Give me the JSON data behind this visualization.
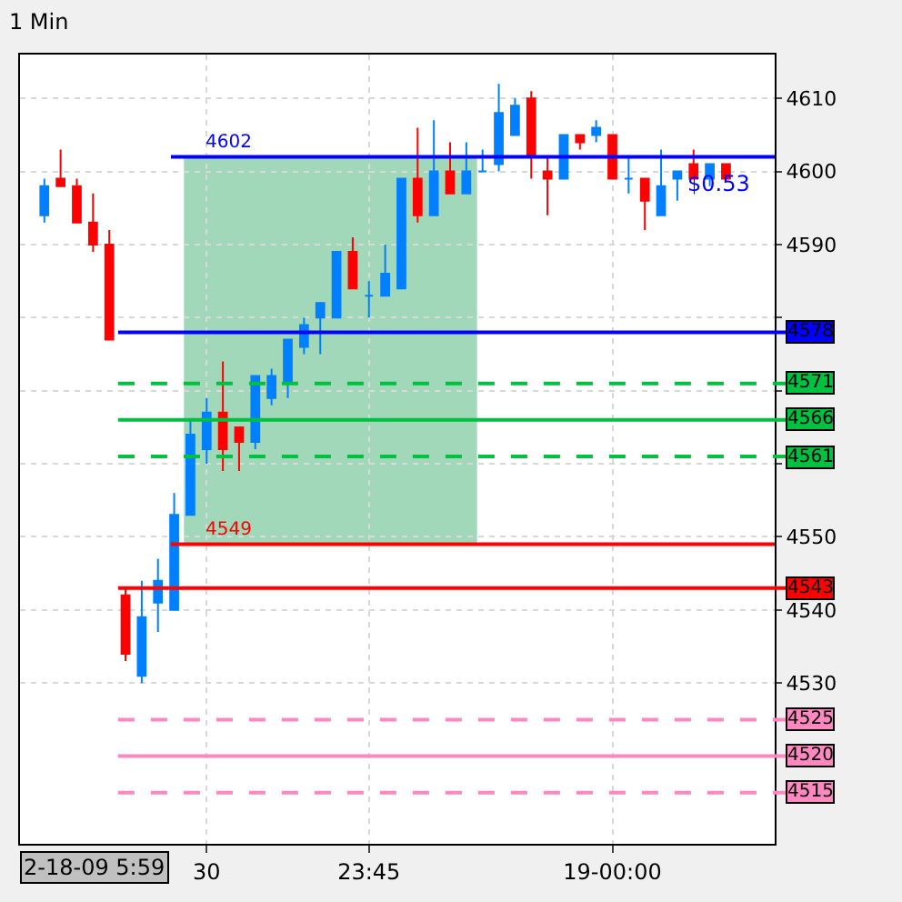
{
  "chart_data": {
    "type": "candlestick",
    "title": "1 Min",
    "categories": [
      null,
      null,
      null,
      null,
      null,
      null,
      null,
      null,
      null,
      null,
      "30",
      null,
      null,
      null,
      null,
      null,
      null,
      null,
      null,
      null,
      "23:45",
      null,
      null,
      null,
      null,
      null,
      null,
      null,
      null,
      null,
      null,
      null,
      null,
      null,
      null,
      "19-00:00",
      null,
      null,
      null,
      null,
      null,
      null,
      null
    ],
    "ohlc": [
      [
        4594,
        4599,
        4593,
        4598
      ],
      [
        4599,
        4603,
        4598,
        4598
      ],
      [
        4598,
        4599,
        4593,
        4593
      ],
      [
        4593,
        4597,
        4589,
        4590
      ],
      [
        4590,
        4592,
        4577,
        4577
      ],
      [
        4542,
        4543,
        4533,
        4534
      ],
      [
        4531,
        4544,
        4530,
        4539
      ],
      [
        4541,
        4547,
        4537,
        4544
      ],
      [
        4540,
        4556,
        4540,
        4553
      ],
      [
        4553,
        4566,
        4553,
        4564
      ],
      [
        4562,
        4569,
        4560,
        4567
      ],
      [
        4567,
        4574,
        4559,
        4562
      ],
      [
        4565,
        4565,
        4559,
        4563
      ],
      [
        4563,
        4572,
        4562,
        4572
      ],
      [
        4569,
        4573,
        4568,
        4572
      ],
      [
        4571,
        4577,
        4569,
        4577
      ],
      [
        4576,
        4580,
        4575,
        4579
      ],
      [
        4580,
        4582,
        4575,
        4582
      ],
      [
        4580,
        4589,
        4580,
        4589
      ],
      [
        4589,
        4591,
        4584,
        4584
      ],
      [
        4583,
        4585,
        4580,
        4583
      ],
      [
        4583,
        4590,
        4583,
        4586
      ],
      [
        4584,
        4599,
        4584,
        4599
      ],
      [
        4599,
        4606,
        4593,
        4594
      ],
      [
        4594,
        4607,
        4594,
        4600
      ],
      [
        4600,
        4604,
        4597,
        4597
      ],
      [
        4597,
        4604,
        4597,
        4600
      ],
      [
        4600,
        4603,
        4600,
        4600
      ],
      [
        4601,
        4612,
        4600,
        4608
      ],
      [
        4605,
        4610,
        4605,
        4609
      ],
      [
        4610,
        4611,
        4599,
        4602
      ],
      [
        4600,
        4602,
        4594,
        4599
      ],
      [
        4599,
        4605,
        4599,
        4605
      ],
      [
        4605,
        4605,
        4603,
        4604
      ],
      [
        4605,
        4607,
        4604,
        4606
      ],
      [
        4605,
        4605,
        4599,
        4599
      ],
      [
        4599,
        4602,
        4597,
        4599
      ],
      [
        4599,
        4599,
        4592,
        4596
      ],
      [
        4594,
        4603,
        4594,
        4598
      ],
      [
        4599,
        4600,
        4596,
        4600
      ],
      [
        4601,
        4603,
        4599,
        4599
      ],
      [
        4599,
        4601,
        4598,
        4601
      ],
      [
        4601,
        4601,
        4599,
        4599
      ]
    ],
    "colors": [
      "#0080ff",
      "#ff0000",
      "#ff0000",
      "#ff0000",
      "#ff0000",
      "#ff0000",
      "#0080ff",
      "#0080ff",
      "#0080ff",
      "#0080ff",
      "#0080ff",
      "#ff0000",
      "#ff0000",
      "#0080ff",
      "#0080ff",
      "#0080ff",
      "#0080ff",
      "#0080ff",
      "#0080ff",
      "#ff0000",
      "#0080ff",
      "#0080ff",
      "#0080ff",
      "#ff0000",
      "#0080ff",
      "#ff0000",
      "#0080ff",
      "#0080ff",
      "#0080ff",
      "#0080ff",
      "#ff0000",
      "#ff0000",
      "#0080ff",
      "#ff0000",
      "#0080ff",
      "#ff0000",
      "#0080ff",
      "#ff0000",
      "#0080ff",
      "#0080ff",
      "#ff0000",
      "#0080ff",
      "#ff0000"
    ],
    "ylim": [
      4508,
      4616
    ],
    "yticks": [
      4530,
      4540,
      4550,
      {
        "value": 4560,
        "label": null
      },
      {
        "value": 4570,
        "label": null
      },
      {
        "value": 4580,
        "label": null
      },
      4590,
      4600,
      4610
    ],
    "grid": true,
    "bands": [
      {
        "axis": "y",
        "from": 4549,
        "to": 4602,
        "color": "#8fd1ad"
      }
    ],
    "ref_lines": [
      {
        "axis": "y",
        "value": 4602,
        "label": "4602",
        "color": "#0000ff"
      },
      {
        "axis": "y",
        "value": 4578,
        "label": "4578",
        "color": "#0000ff"
      },
      {
        "axis": "y",
        "value": 4571,
        "label": "4571",
        "color": "#00c040",
        "line_style": "dashed"
      },
      {
        "axis": "y",
        "value": 4566,
        "label": "4566",
        "color": "#00c040"
      },
      {
        "axis": "y",
        "value": 4561,
        "label": "4561",
        "color": "#00c040",
        "line_style": "dashed"
      },
      {
        "axis": "y",
        "value": 4549,
        "label": "4549",
        "color": "#ff0000"
      },
      {
        "axis": "y",
        "value": 4543,
        "label": "4543",
        "color": "#ff0000"
      },
      {
        "axis": "y",
        "value": 4525,
        "label": "4525",
        "color": "#ff88c0",
        "line_style": "dashed"
      },
      {
        "axis": "y",
        "value": 4520,
        "label": "4520",
        "color": "#ff88c0"
      },
      {
        "axis": "y",
        "value": 4515,
        "label": "4515",
        "color": "#ff88c0",
        "line_style": "dashed"
      }
    ],
    "annotations": [
      "$0.53",
      "2-18-09 5:59"
    ]
  }
}
